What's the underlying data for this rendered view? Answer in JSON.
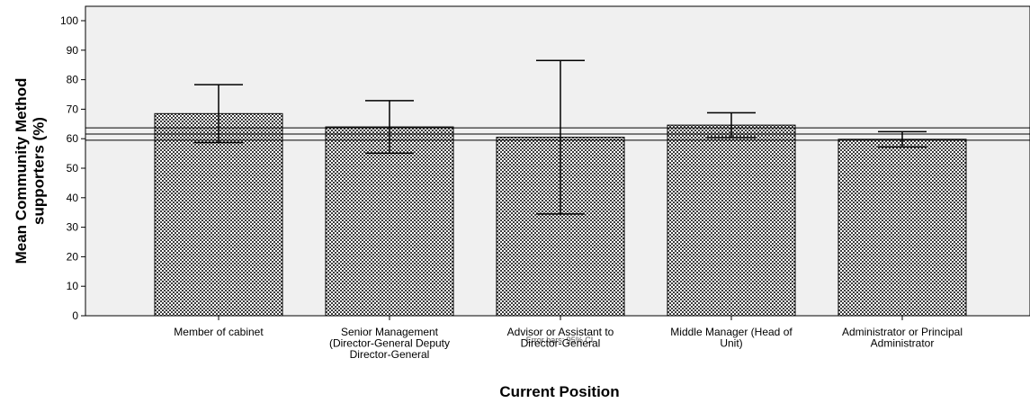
{
  "chart_data": {
    "type": "bar",
    "x_label": "Current Position",
    "y_label": "Mean Community Method\nsupporters (%)",
    "annotation": "Error bars: 95% CI",
    "categories": [
      "Member of cabinet",
      "Senior Management\n(Director-General  Deputy\nDirector-General",
      "Advisor or Assistant to\nDirector-General",
      "Middle Manager (Head of\nUnit)",
      "Administrator or Principal\nAdministrator"
    ],
    "values": [
      68.5,
      64.0,
      60.5,
      64.6,
      59.8
    ],
    "errors": [
      9.8,
      8.9,
      26.0,
      4.2,
      2.6
    ],
    "reference_lines": [
      63.7,
      61.6,
      59.5
    ],
    "color": "#3c3c3c",
    "ylim": [
      0,
      100
    ],
    "yticks": [
      0,
      10,
      20,
      30,
      40,
      50,
      60,
      70,
      80,
      90,
      100
    ]
  }
}
